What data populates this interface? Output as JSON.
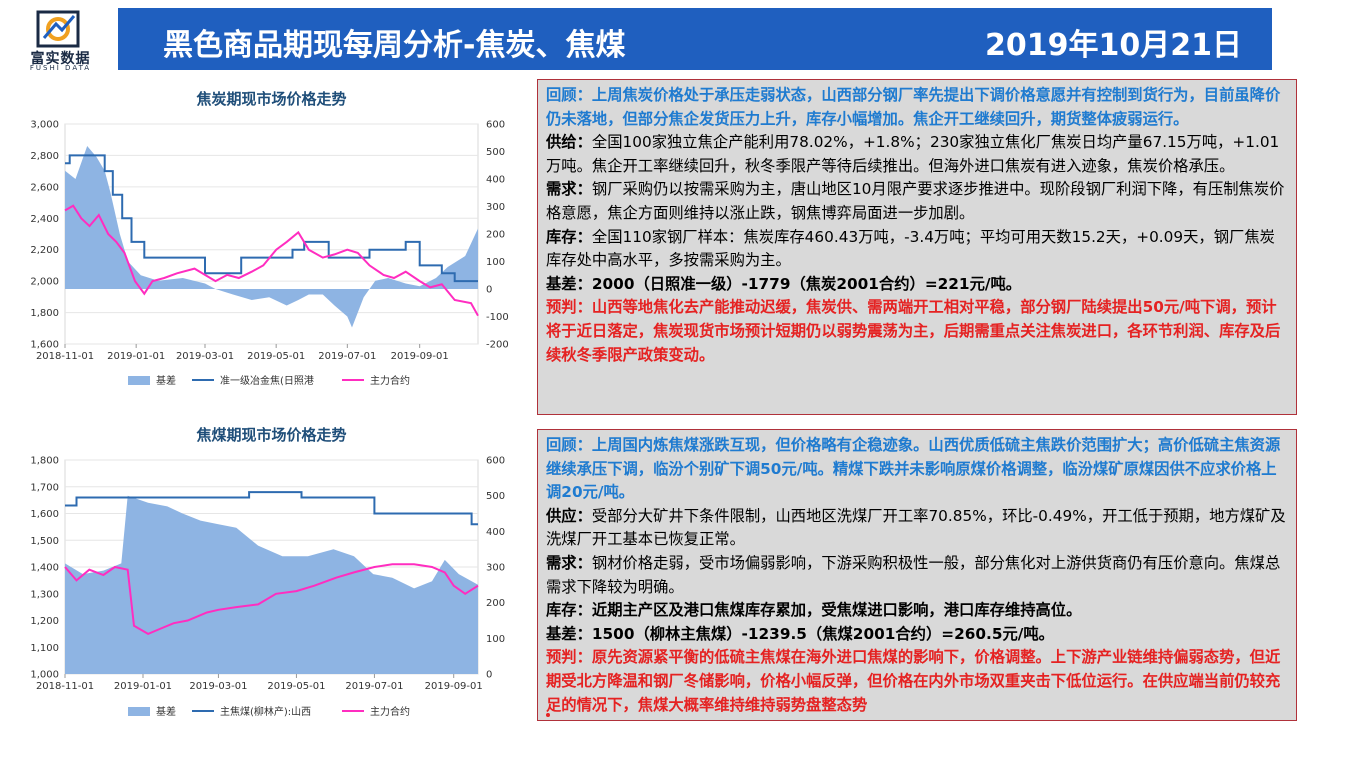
{
  "logo": {
    "name": "富实数据",
    "sub": "FUSHI DATA"
  },
  "header": {
    "title": "黑色商品期现每周分析-焦炭、焦煤",
    "date": "2019年10月21日"
  },
  "colors": {
    "header_bg": "#1f5fbf",
    "area": "#8eb4e3",
    "line": "#2e6bb0",
    "pink": "#ff2dc0",
    "highlight_blue": "#1f7bd0",
    "highlight_red": "#e52222"
  },
  "chart_data": [
    {
      "type": "line",
      "title": "焦炭期现市场价格走势",
      "x_ticks": [
        "2018-11-01",
        "2019-01-01",
        "2019-03-01",
        "2019-05-01",
        "2019-07-01",
        "2019-09-01"
      ],
      "x_range": [
        "2018-11-01",
        "2019-10-21"
      ],
      "left_axis": {
        "range": [
          1600,
          3000
        ],
        "ticks": [
          "1,600",
          "1,800",
          "2,000",
          "2,200",
          "2,400",
          "2,600",
          "2,800",
          "3,000"
        ]
      },
      "right_axis": {
        "range": [
          -200,
          600
        ],
        "ticks": [
          "-200",
          "-100",
          "0",
          "100",
          "200",
          "300",
          "400",
          "500",
          "600"
        ]
      },
      "legend": [
        "基差",
        "准一级冶金焦(日照港",
        "主力合约"
      ],
      "series": [
        {
          "name": "基差",
          "kind": "area",
          "axis": "right",
          "points": [
            [
              "2018-11-01",
              430
            ],
            [
              "2018-11-10",
              400
            ],
            [
              "2018-11-20",
              520
            ],
            [
              "2018-11-28",
              480
            ],
            [
              "2018-12-05",
              430
            ],
            [
              "2018-12-10",
              350
            ],
            [
              "2018-12-18",
              200
            ],
            [
              "2018-12-25",
              100
            ],
            [
              "2019-01-05",
              50
            ],
            [
              "2019-01-20",
              30
            ],
            [
              "2019-02-10",
              40
            ],
            [
              "2019-03-01",
              20
            ],
            [
              "2019-03-10",
              0
            ],
            [
              "2019-03-25",
              -20
            ],
            [
              "2019-04-10",
              -40
            ],
            [
              "2019-04-25",
              -30
            ],
            [
              "2019-05-10",
              -60
            ],
            [
              "2019-05-20",
              -40
            ],
            [
              "2019-05-29",
              -20
            ],
            [
              "2019-06-10",
              -20
            ],
            [
              "2019-06-20",
              -60
            ],
            [
              "2019-07-01",
              -100
            ],
            [
              "2019-07-05",
              -140
            ],
            [
              "2019-07-15",
              -30
            ],
            [
              "2019-07-25",
              30
            ],
            [
              "2019-08-05",
              40
            ],
            [
              "2019-08-20",
              20
            ],
            [
              "2019-09-01",
              10
            ],
            [
              "2019-09-15",
              40
            ],
            [
              "2019-09-25",
              80
            ],
            [
              "2019-10-10",
              120
            ],
            [
              "2019-10-21",
              220
            ]
          ]
        },
        {
          "name": "准一级冶金焦(日照港",
          "kind": "step",
          "axis": "left",
          "points": [
            [
              "2018-11-01",
              2750
            ],
            [
              "2018-11-05",
              2800
            ],
            [
              "2018-12-01",
              2800
            ],
            [
              "2018-12-05",
              2700
            ],
            [
              "2018-12-12",
              2550
            ],
            [
              "2018-12-20",
              2400
            ],
            [
              "2018-12-28",
              2250
            ],
            [
              "2019-01-08",
              2150
            ],
            [
              "2019-02-20",
              2150
            ],
            [
              "2019-03-01",
              2050
            ],
            [
              "2019-03-20",
              2050
            ],
            [
              "2019-04-01",
              2150
            ],
            [
              "2019-05-15",
              2200
            ],
            [
              "2019-05-25",
              2250
            ],
            [
              "2019-06-10",
              2250
            ],
            [
              "2019-06-15",
              2150
            ],
            [
              "2019-07-10",
              2150
            ],
            [
              "2019-07-20",
              2200
            ],
            [
              "2019-08-10",
              2200
            ],
            [
              "2019-08-20",
              2250
            ],
            [
              "2019-08-31",
              2250
            ],
            [
              "2019-09-01",
              2100
            ],
            [
              "2019-09-20",
              2050
            ],
            [
              "2019-10-01",
              2000
            ],
            [
              "2019-10-21",
              2000
            ]
          ]
        },
        {
          "name": "主力合约",
          "kind": "line",
          "axis": "left",
          "points": [
            [
              "2018-11-01",
              2450
            ],
            [
              "2018-11-08",
              2480
            ],
            [
              "2018-11-15",
              2400
            ],
            [
              "2018-11-22",
              2350
            ],
            [
              "2018-11-30",
              2420
            ],
            [
              "2018-12-08",
              2300
            ],
            [
              "2018-12-15",
              2250
            ],
            [
              "2018-12-22",
              2180
            ],
            [
              "2018-12-31",
              2000
            ],
            [
              "2019-01-08",
              1920
            ],
            [
              "2019-01-15",
              2000
            ],
            [
              "2019-01-25",
              2020
            ],
            [
              "2019-02-05",
              2050
            ],
            [
              "2019-02-20",
              2080
            ],
            [
              "2019-03-01",
              2040
            ],
            [
              "2019-03-10",
              2000
            ],
            [
              "2019-03-20",
              2040
            ],
            [
              "2019-03-30",
              2020
            ],
            [
              "2019-04-10",
              2060
            ],
            [
              "2019-04-20",
              2100
            ],
            [
              "2019-05-01",
              2200
            ],
            [
              "2019-05-10",
              2250
            ],
            [
              "2019-05-20",
              2310
            ],
            [
              "2019-05-29",
              2200
            ],
            [
              "2019-06-10",
              2150
            ],
            [
              "2019-06-20",
              2170
            ],
            [
              "2019-07-01",
              2200
            ],
            [
              "2019-07-10",
              2180
            ],
            [
              "2019-07-20",
              2100
            ],
            [
              "2019-08-01",
              2040
            ],
            [
              "2019-08-10",
              2020
            ],
            [
              "2019-08-20",
              2060
            ],
            [
              "2019-09-01",
              2000
            ],
            [
              "2019-09-10",
              1960
            ],
            [
              "2019-09-20",
              1980
            ],
            [
              "2019-10-01",
              1880
            ],
            [
              "2019-10-15",
              1860
            ],
            [
              "2019-10-21",
              1780
            ]
          ]
        }
      ]
    },
    {
      "type": "line",
      "title": "焦煤期现市场价格走势",
      "x_ticks": [
        "2018-11-01",
        "2019-01-01",
        "2019-03-01",
        "2019-05-01",
        "2019-07-01",
        "2019-09-01"
      ],
      "x_range": [
        "2018-11-01",
        "2019-09-20"
      ],
      "left_axis": {
        "range": [
          1000,
          1800
        ],
        "ticks": [
          "1,000",
          "1,100",
          "1,200",
          "1,300",
          "1,400",
          "1,500",
          "1,600",
          "1,700",
          "1,800"
        ]
      },
      "right_axis": {
        "range": [
          0,
          600
        ],
        "ticks": [
          "0",
          "100",
          "200",
          "300",
          "400",
          "500",
          "600"
        ]
      },
      "legend": [
        "基差",
        "主焦煤(柳林产):山西",
        "主力合约"
      ],
      "series": [
        {
          "name": "基差",
          "kind": "area",
          "axis": "right",
          "points": [
            [
              "2018-11-01",
              310
            ],
            [
              "2018-11-15",
              280
            ],
            [
              "2018-12-01",
              290
            ],
            [
              "2018-12-15",
              310
            ],
            [
              "2018-12-20",
              500
            ],
            [
              "2019-01-05",
              480
            ],
            [
              "2019-01-20",
              470
            ],
            [
              "2019-02-01",
              450
            ],
            [
              "2019-02-15",
              430
            ],
            [
              "2019-03-01",
              420
            ],
            [
              "2019-03-15",
              410
            ],
            [
              "2019-04-01",
              360
            ],
            [
              "2019-04-20",
              330
            ],
            [
              "2019-05-10",
              330
            ],
            [
              "2019-05-30",
              350
            ],
            [
              "2019-06-15",
              330
            ],
            [
              "2019-06-30",
              280
            ],
            [
              "2019-07-15",
              270
            ],
            [
              "2019-08-01",
              240
            ],
            [
              "2019-08-15",
              260
            ],
            [
              "2019-08-25",
              320
            ],
            [
              "2019-09-05",
              280
            ],
            [
              "2019-09-20",
              250
            ]
          ]
        },
        {
          "name": "主焦煤(柳林产):山西",
          "kind": "step",
          "axis": "left",
          "points": [
            [
              "2018-11-01",
              1630
            ],
            [
              "2018-11-10",
              1660
            ],
            [
              "2019-03-20",
              1660
            ],
            [
              "2019-03-25",
              1680
            ],
            [
              "2019-05-01",
              1680
            ],
            [
              "2019-05-05",
              1660
            ],
            [
              "2019-06-25",
              1660
            ],
            [
              "2019-07-01",
              1600
            ],
            [
              "2019-09-10",
              1600
            ],
            [
              "2019-09-15",
              1560
            ],
            [
              "2019-09-20",
              1560
            ]
          ]
        },
        {
          "name": "主力合约",
          "kind": "line",
          "axis": "left",
          "points": [
            [
              "2018-11-01",
              1400
            ],
            [
              "2018-11-10",
              1350
            ],
            [
              "2018-11-20",
              1390
            ],
            [
              "2018-12-01",
              1370
            ],
            [
              "2018-12-10",
              1400
            ],
            [
              "2018-12-20",
              1390
            ],
            [
              "2018-12-25",
              1180
            ],
            [
              "2019-01-05",
              1150
            ],
            [
              "2019-01-15",
              1170
            ],
            [
              "2019-01-25",
              1190
            ],
            [
              "2019-02-05",
              1200
            ],
            [
              "2019-02-20",
              1230
            ],
            [
              "2019-03-01",
              1240
            ],
            [
              "2019-03-15",
              1250
            ],
            [
              "2019-04-01",
              1260
            ],
            [
              "2019-04-15",
              1300
            ],
            [
              "2019-05-01",
              1310
            ],
            [
              "2019-05-15",
              1330
            ],
            [
              "2019-06-01",
              1360
            ],
            [
              "2019-06-15",
              1380
            ],
            [
              "2019-07-01",
              1400
            ],
            [
              "2019-07-15",
              1410
            ],
            [
              "2019-08-01",
              1410
            ],
            [
              "2019-08-15",
              1400
            ],
            [
              "2019-08-25",
              1380
            ],
            [
              "2019-09-01",
              1330
            ],
            [
              "2019-09-10",
              1300
            ],
            [
              "2019-09-20",
              1330
            ]
          ]
        }
      ]
    }
  ],
  "panels": [
    {
      "review": "回顾：上周焦炭价格处于承压走弱状态，山西部分钢厂率先提出下调价格意愿并有控制到货行为，目前虽降价仍未落地，但部分焦企发货压力上升，库存小幅增加。焦企开工继续回升，期货整体疲弱运行。",
      "supply_label": "供给：",
      "supply": "全国100家独立焦企产能利用78.02%，+1.8%；230家独立焦化厂焦炭日均产量67.15万吨，+1.01万吨。焦企开工率继续回升，秋冬季限产等待后续推出。但海外进口焦炭有进入迹象，焦炭价格承压。",
      "demand_label": "需求：",
      "demand": "钢厂采购仍以按需采购为主，唐山地区10月限产要求逐步推进中。现阶段钢厂利润下降，有压制焦炭价格意愿，焦企方面则维持以涨止跌，钢焦博弈局面进一步加剧。",
      "stock_label": "库存：",
      "stock": "全国110家钢厂样本：焦炭库存460.43万吨，-3.4万吨；平均可用天数15.2天，+0.09天，钢厂焦炭库存处中高水平，多按需采购为主。",
      "basis": "基差：2000（日照准一级）-1779（焦炭2001合约）=221元/吨。",
      "forecast": "预判：山西等地焦化去产能推动迟缓，焦炭供、需两端开工相对平稳，部分钢厂陆续提出50元/吨下调，预计将于近日落定，焦炭现货市场预计短期仍以弱势震荡为主，后期需重点关注焦炭进口，各环节利润、库存及后续秋冬季限产政策变动。"
    },
    {
      "review": "回顾：上周国内炼焦煤涨跌互现，但价格略有企稳迹象。山西优质低硫主焦跌价范围扩大；高价低硫主焦资源继续承压下调，临汾个别矿下调50元/吨。精煤下跌并未影响原煤价格调整，临汾煤矿原煤因供不应求价格上调20元/吨。",
      "supply_label": "供应：",
      "supply": "受部分大矿井下条件限制，山西地区洗煤厂开工率70.85%，环比-0.49%，开工低于预期，地方煤矿及洗煤厂开工基本已恢复正常。",
      "demand_label": "需求：",
      "demand": "钢材价格走弱，受市场偏弱影响，下游采购积极性一般，部分焦化对上游供货商仍有压价意向。焦煤总需求下降较为明确。",
      "stock": "库存：近期主产区及港口焦煤库存累加，受焦煤进口影响，港口库存维持高位。",
      "basis": "基差：1500（柳林主焦煤）-1239.5（焦煤2001合约）=260.5元/吨。",
      "forecast": "预判：原先资源紧平衡的低硫主焦煤在海外进口焦煤的影响下，价格调整。上下游产业链维持偏弱态势，但近期受北方降温和钢厂冬储影响，价格小幅反弹，但价格在内外市场双重夹击下低位运行。在供应端当前仍较充足的情况下，焦煤大概率维持维持弱势盘整态势"
    }
  ]
}
